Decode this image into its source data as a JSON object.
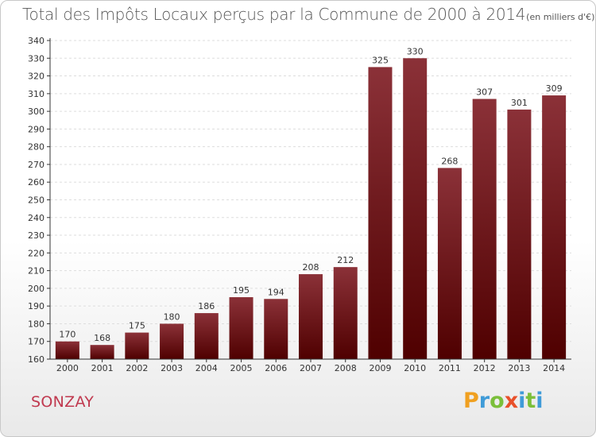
{
  "header": {
    "title": "Total des Impôts Locaux perçus par la Commune de 2000 à 2014",
    "subtitle": "(en milliers d'€)"
  },
  "footer": {
    "commune": "SONZAY",
    "logo_text": "Proxiti"
  },
  "colors": {
    "bar_top": "#8b3138",
    "bar_bottom": "#4f0000",
    "commune": "#c0394f",
    "axis": "#333333",
    "grid": "#dddddd"
  },
  "chart_data": {
    "type": "bar",
    "categories": [
      "2000",
      "2001",
      "2002",
      "2003",
      "2004",
      "2005",
      "2006",
      "2007",
      "2008",
      "2009",
      "2010",
      "2011",
      "2012",
      "2013",
      "2014"
    ],
    "values": [
      170,
      168,
      175,
      180,
      186,
      195,
      194,
      208,
      212,
      325,
      330,
      268,
      307,
      301,
      309
    ],
    "ylim": [
      160,
      340
    ],
    "yticks": [
      160,
      170,
      180,
      190,
      200,
      210,
      220,
      230,
      240,
      250,
      260,
      270,
      280,
      290,
      300,
      310,
      320,
      330,
      340
    ],
    "grid": "horizontal-dashed",
    "data_labels": true
  }
}
